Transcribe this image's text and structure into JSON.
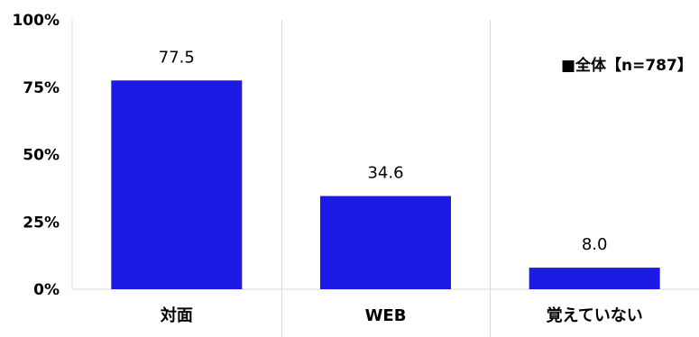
{
  "chart_data": {
    "type": "bar",
    "categories": [
      "対面",
      "WEB",
      "覚えていない"
    ],
    "series": [
      {
        "name": "全体【n=787】",
        "values": [
          77.5,
          34.6,
          8.0
        ],
        "value_labels": [
          "77.5",
          "34.6",
          "8.0"
        ],
        "color": "#1d1ae6"
      }
    ],
    "ylim": [
      0,
      100
    ],
    "yticks": [
      0,
      25,
      50,
      75,
      100
    ],
    "ytick_labels": [
      "0%",
      "25%",
      "50%",
      "75%",
      "100%"
    ],
    "grid": "vertical-category-separators",
    "legend": {
      "position": "top-right",
      "marker": "■",
      "label": "全体【n=787】"
    },
    "axis_color": "#d9d9d9",
    "title": "",
    "xlabel": "",
    "ylabel": ""
  }
}
